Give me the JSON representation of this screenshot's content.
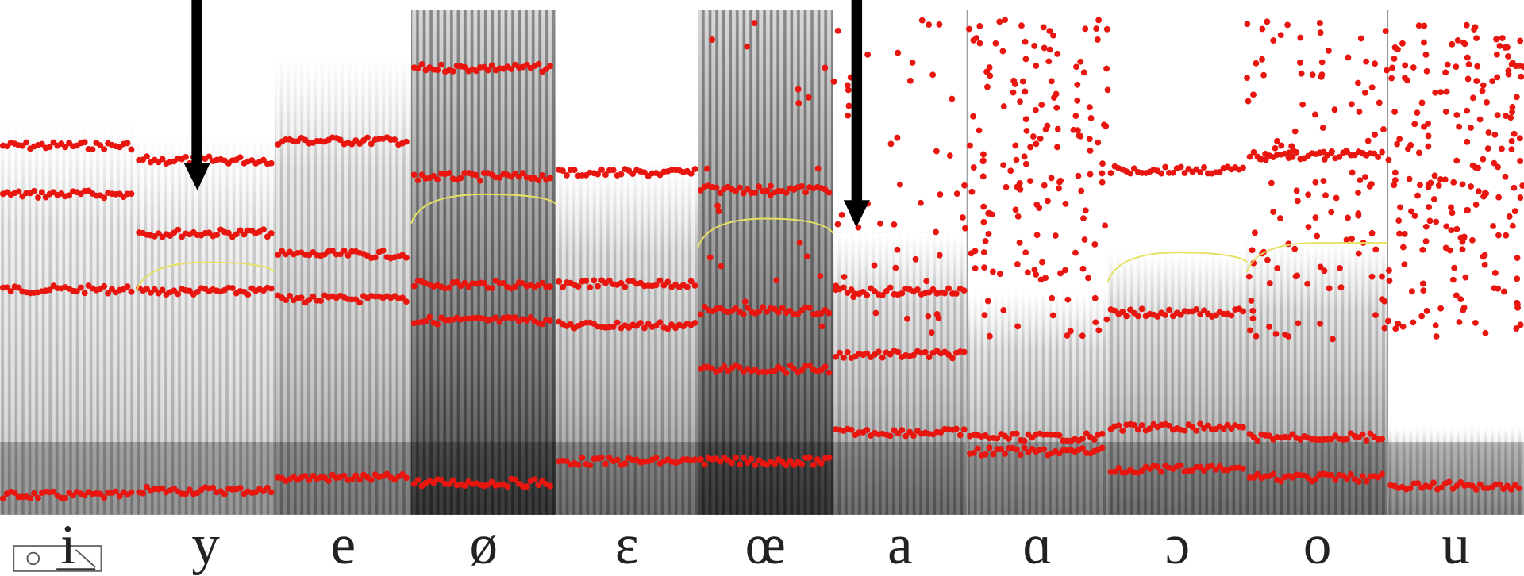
{
  "vowels": [
    "i",
    "y",
    "e",
    "ø",
    "ɛ",
    "œ",
    "a",
    "ɑ",
    "ɔ",
    "o",
    "u"
  ]
}
